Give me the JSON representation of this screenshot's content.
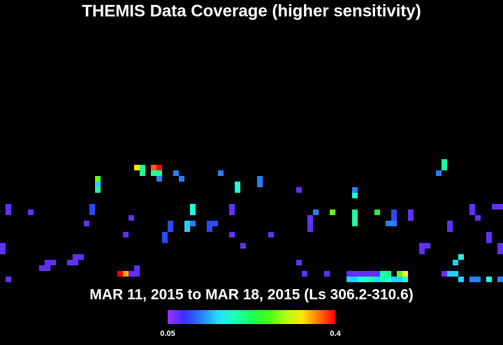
{
  "title": "THEMIS Data Coverage (higher sensitivity)",
  "subtitle": "MAR 11, 2015 to MAR 18, 2015 (Ls 306.2-310.6)",
  "colorbar": {
    "min": 0.05,
    "max": 0.4,
    "ticks": [
      0.05,
      0.4
    ]
  },
  "cells": [
    [
      24,
      0,
      0.33
    ],
    [
      25,
      0,
      0.2
    ],
    [
      25,
      1,
      0.2
    ],
    [
      27,
      0,
      0.37
    ],
    [
      28,
      0,
      0.4
    ],
    [
      27,
      1,
      0.2
    ],
    [
      28,
      1,
      0.2
    ],
    [
      28,
      2,
      0.12
    ],
    [
      31,
      1,
      0.12
    ],
    [
      32,
      2,
      0.12
    ],
    [
      39,
      1,
      0.12
    ],
    [
      17,
      2,
      0.27
    ],
    [
      17,
      3,
      0.15
    ],
    [
      17,
      4,
      0.2
    ],
    [
      42,
      3,
      0.18
    ],
    [
      42,
      4,
      0.18
    ],
    [
      46,
      2,
      0.12
    ],
    [
      46,
      3,
      0.12
    ],
    [
      53,
      4,
      0.07
    ],
    [
      63,
      4,
      0.12
    ],
    [
      63,
      5,
      0.18
    ],
    [
      79,
      0,
      0.2
    ],
    [
      78,
      1,
      0.12
    ],
    [
      79,
      -1,
      0.2
    ],
    [
      1,
      7,
      0.07
    ],
    [
      1,
      8,
      0.07
    ],
    [
      5,
      8,
      0.07
    ],
    [
      16,
      7,
      0.1
    ],
    [
      16,
      8,
      0.1
    ],
    [
      34,
      7,
      0.18
    ],
    [
      34,
      8,
      0.18
    ],
    [
      41,
      7,
      0.07
    ],
    [
      41,
      8,
      0.07
    ],
    [
      56,
      8,
      0.12
    ],
    [
      59,
      8,
      0.27
    ],
    [
      63,
      8,
      0.2
    ],
    [
      63,
      9,
      0.2
    ],
    [
      63,
      10,
      0.2
    ],
    [
      67,
      8,
      0.23
    ],
    [
      70,
      8,
      0.1
    ],
    [
      70,
      9,
      0.1
    ],
    [
      73,
      8,
      0.07
    ],
    [
      73,
      9,
      0.07
    ],
    [
      84,
      7,
      0.07
    ],
    [
      84,
      8,
      0.07
    ],
    [
      85,
      9,
      0.07
    ],
    [
      88,
      7,
      0.07
    ],
    [
      89,
      7,
      0.07
    ],
    [
      15,
      10,
      0.07
    ],
    [
      23,
      9,
      0.07
    ],
    [
      30,
      10,
      0.1
    ],
    [
      33,
      10,
      0.15
    ],
    [
      33,
      11,
      0.15
    ],
    [
      34,
      10,
      0.12
    ],
    [
      37,
      10,
      0.1
    ],
    [
      37,
      11,
      0.1
    ],
    [
      38,
      10,
      0.1
    ],
    [
      55,
      9,
      0.07
    ],
    [
      55,
      10,
      0.07
    ],
    [
      55,
      11,
      0.07
    ],
    [
      69,
      10,
      0.12
    ],
    [
      70,
      10,
      0.12
    ],
    [
      80,
      10,
      0.07
    ],
    [
      80,
      11,
      0.07
    ],
    [
      30,
      11,
      0.1
    ],
    [
      22,
      12,
      0.07
    ],
    [
      29,
      12,
      0.1
    ],
    [
      41,
      12,
      0.07
    ],
    [
      48,
      12,
      0.07
    ],
    [
      87,
      12,
      0.07
    ],
    [
      87,
      13,
      0.07
    ],
    [
      29,
      13,
      0.1
    ],
    [
      43,
      14,
      0.07
    ],
    [
      0,
      14,
      0.07
    ],
    [
      0,
      15,
      0.07
    ],
    [
      75,
      14,
      0.07
    ],
    [
      76,
      14,
      0.07
    ],
    [
      75,
      15,
      0.07
    ],
    [
      89,
      14,
      0.07
    ],
    [
      89,
      15,
      0.07
    ],
    [
      13,
      16,
      0.07
    ],
    [
      14,
      16,
      0.07
    ],
    [
      12,
      17,
      0.07
    ],
    [
      13,
      17,
      0.07
    ],
    [
      8,
      17,
      0.07
    ],
    [
      9,
      17,
      0.07
    ],
    [
      7,
      18,
      0.07
    ],
    [
      8,
      18,
      0.07
    ],
    [
      53,
      17,
      0.07
    ],
    [
      82,
      16,
      0.18
    ],
    [
      81,
      17,
      0.15
    ],
    [
      24,
      18,
      0.07
    ],
    [
      21,
      19,
      0.4
    ],
    [
      22,
      19,
      0.35
    ],
    [
      23,
      19,
      0.07
    ],
    [
      24,
      19,
      0.07
    ],
    [
      54,
      19,
      0.07
    ],
    [
      58,
      19,
      0.07
    ],
    [
      62,
      19,
      0.07
    ],
    [
      63,
      19,
      0.07
    ],
    [
      64,
      19,
      0.07
    ],
    [
      65,
      19,
      0.07
    ],
    [
      66,
      19,
      0.07
    ],
    [
      67,
      19,
      0.07
    ],
    [
      68,
      19,
      0.2
    ],
    [
      69,
      19,
      0.2
    ],
    [
      71,
      19,
      0.27
    ],
    [
      72,
      19,
      0.32
    ],
    [
      79,
      19,
      0.07
    ],
    [
      80,
      19,
      0.15
    ],
    [
      81,
      19,
      0.15
    ],
    [
      1,
      20,
      0.07
    ],
    [
      62,
      20,
      0.15
    ],
    [
      63,
      20,
      0.15
    ],
    [
      64,
      20,
      0.18
    ],
    [
      65,
      20,
      0.18
    ],
    [
      66,
      20,
      0.2
    ],
    [
      67,
      20,
      0.15
    ],
    [
      68,
      20,
      0.2
    ],
    [
      69,
      20,
      0.18
    ],
    [
      70,
      20,
      0.15
    ],
    [
      71,
      20,
      0.15
    ],
    [
      72,
      20,
      0.18
    ],
    [
      82,
      20,
      0.15
    ],
    [
      84,
      20,
      0.12
    ],
    [
      85,
      20,
      0.12
    ],
    [
      87,
      20,
      0.18
    ],
    [
      89,
      20,
      0.12
    ]
  ]
}
